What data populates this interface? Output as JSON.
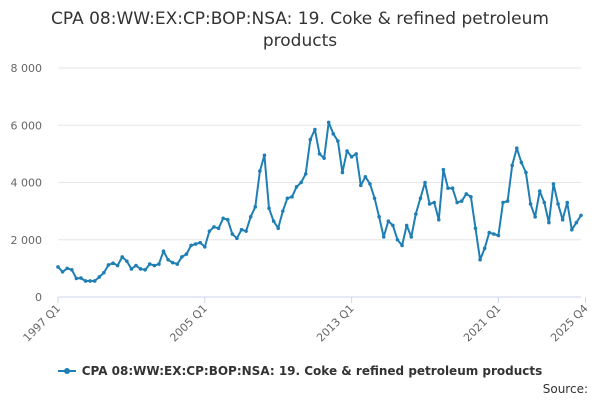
{
  "chart_data": {
    "type": "line",
    "title_line1": "CPA 08:WW:EX:CP:BOP:NSA: 19. Coke & refined petroleum",
    "title_line2": "products",
    "ylim": [
      0,
      8000
    ],
    "yticks": [
      0,
      2000,
      4000,
      6000,
      8000
    ],
    "ytick_labels": [
      "0",
      "2 000",
      "4 000",
      "6 000",
      "8 000"
    ],
    "xtick_labels": [
      "1997 Q1",
      "2005 Q1",
      "2013 Q1",
      "2021 Q1",
      "2025 Q4"
    ],
    "xtick_index": [
      0,
      32,
      64,
      96,
      115
    ],
    "legend": "CPA 08:WW:EX:CP:BOP:NSA: 19. Coke & refined petroleum products",
    "color": "#1f7fb5",
    "series": [
      {
        "name": "CPA 08:WW:EX:CP:BOP:NSA: 19. Coke & refined petroleum products",
        "values": [
          1050,
          880,
          1000,
          950,
          650,
          660,
          560,
          560,
          560,
          700,
          850,
          1120,
          1180,
          1100,
          1400,
          1250,
          980,
          1100,
          980,
          950,
          1150,
          1100,
          1150,
          1600,
          1300,
          1200,
          1150,
          1400,
          1500,
          1800,
          1850,
          1900,
          1750,
          2300,
          2450,
          2400,
          2750,
          2700,
          2200,
          2050,
          2350,
          2300,
          2800,
          3150,
          4400,
          4950,
          3100,
          2650,
          2400,
          3000,
          3450,
          3500,
          3850,
          4000,
          4300,
          5500,
          5850,
          5000,
          4850,
          6100,
          5700,
          5450,
          4350,
          5100,
          4900,
          5000,
          3900,
          4200,
          3950,
          3450,
          2800,
          2100,
          2650,
          2500,
          2000,
          1800,
          2500,
          2100,
          2900,
          3450,
          4000,
          3250,
          3300,
          2700,
          4450,
          3800,
          3800,
          3300,
          3350,
          3600,
          3500,
          2400,
          1300,
          1700,
          2250,
          2200,
          2150,
          3300,
          3350,
          4600,
          5200,
          4700,
          4350,
          3250,
          2800,
          3700,
          3300,
          2600,
          3950,
          3250,
          2700,
          3300,
          2350,
          2600,
          2850
        ]
      }
    ]
  },
  "source_label": "Source:"
}
